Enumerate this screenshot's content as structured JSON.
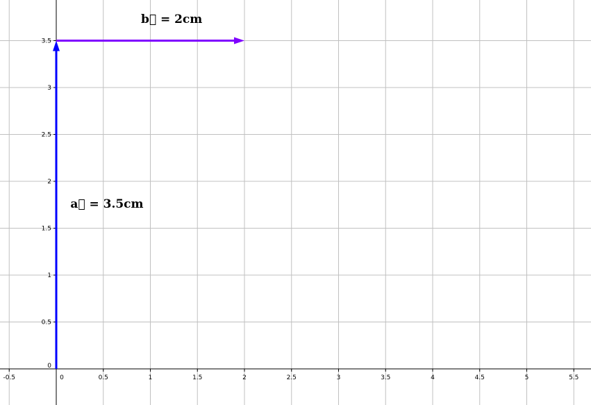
{
  "chart_data": {
    "type": "diagram",
    "xlim": [
      -0.6,
      5.7
    ],
    "ylim": [
      -0.38,
      3.9
    ],
    "grid": true,
    "x_ticks": [
      {
        "value": -0.5,
        "label": "-0.5"
      },
      {
        "value": 0,
        "label": "0"
      },
      {
        "value": 0.5,
        "label": "0.5"
      },
      {
        "value": 1,
        "label": "1"
      },
      {
        "value": 1.5,
        "label": "1.5"
      },
      {
        "value": 2,
        "label": "2"
      },
      {
        "value": 2.5,
        "label": "2.5"
      },
      {
        "value": 3,
        "label": "3"
      },
      {
        "value": 3.5,
        "label": "3.5"
      },
      {
        "value": 4,
        "label": "4"
      },
      {
        "value": 4.5,
        "label": "4.5"
      },
      {
        "value": 5,
        "label": "5"
      },
      {
        "value": 5.5,
        "label": "5.5"
      }
    ],
    "y_ticks": [
      {
        "value": 0,
        "label": "0"
      },
      {
        "value": 0.5,
        "label": "0.5"
      },
      {
        "value": 1,
        "label": "1"
      },
      {
        "value": 1.5,
        "label": "1.5"
      },
      {
        "value": 2,
        "label": "2"
      },
      {
        "value": 2.5,
        "label": "2.5"
      },
      {
        "value": 3,
        "label": "3"
      },
      {
        "value": 3.5,
        "label": "3.5"
      }
    ],
    "vectors": [
      {
        "id": "a",
        "from": [
          0,
          0
        ],
        "to": [
          0,
          3.5
        ],
        "color": "#0000ff",
        "label": "a⃗ = 3.5cm",
        "label_at": [
          0.15,
          1.72
        ]
      },
      {
        "id": "b",
        "from": [
          0,
          3.5
        ],
        "to": [
          2,
          3.5
        ],
        "color": "#7f00ff",
        "label": "b⃗ = 2cm",
        "label_at": [
          0.9,
          3.69
        ]
      }
    ]
  }
}
